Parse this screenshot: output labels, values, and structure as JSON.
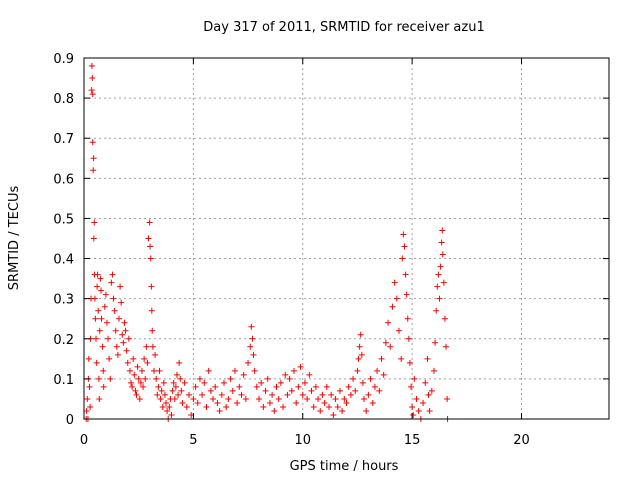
{
  "chart_data": {
    "type": "scatter",
    "title": "Day 317 of 2011, SRMTID for receiver azu1",
    "xlabel": "GPS time / hours",
    "ylabel": "SRMTID / TECUs",
    "xlim": [
      0,
      24
    ],
    "ylim": [
      0,
      0.9
    ],
    "xticks": [
      0,
      5,
      10,
      15,
      20
    ],
    "yticks": [
      0,
      0.1,
      0.2,
      0.3,
      0.4,
      0.5,
      0.6,
      0.7,
      0.8,
      0.9
    ],
    "xtick_labels": [
      "0",
      "5",
      "10",
      "15",
      "20"
    ],
    "ytick_labels": [
      "0",
      "0.1",
      "0.2",
      "0.3",
      "0.4",
      "0.5",
      "0.6",
      "0.7",
      "0.8",
      "0.9"
    ],
    "grid": true,
    "marker": "plus",
    "color": "#ff0000",
    "series": [
      {
        "name": "SRMTID",
        "points": [
          [
            0.1,
            0.0
          ],
          [
            0.12,
            0.02
          ],
          [
            0.15,
            0.05
          ],
          [
            0.18,
            0.0
          ],
          [
            0.2,
            0.1
          ],
          [
            0.22,
            0.15
          ],
          [
            0.25,
            0.08
          ],
          [
            0.28,
            0.03
          ],
          [
            0.3,
            0.2
          ],
          [
            0.32,
            0.3
          ],
          [
            0.35,
            0.82
          ],
          [
            0.36,
            0.88
          ],
          [
            0.38,
            0.85
          ],
          [
            0.4,
            0.81
          ],
          [
            0.4,
            0.69
          ],
          [
            0.42,
            0.62
          ],
          [
            0.44,
            0.65
          ],
          [
            0.45,
            0.45
          ],
          [
            0.47,
            0.49
          ],
          [
            0.48,
            0.36
          ],
          [
            0.5,
            0.3
          ],
          [
            0.52,
            0.25
          ],
          [
            0.55,
            0.2
          ],
          [
            0.58,
            0.14
          ],
          [
            0.6,
            0.33
          ],
          [
            0.62,
            0.36
          ],
          [
            0.65,
            0.27
          ],
          [
            0.68,
            0.1
          ],
          [
            0.7,
            0.05
          ],
          [
            0.72,
            0.22
          ],
          [
            0.75,
            0.35
          ],
          [
            0.78,
            0.32
          ],
          [
            0.8,
            0.25
          ],
          [
            0.85,
            0.18
          ],
          [
            0.88,
            0.12
          ],
          [
            0.9,
            0.08
          ],
          [
            0.95,
            0.28
          ],
          [
            1.0,
            0.31
          ],
          [
            1.05,
            0.24
          ],
          [
            1.1,
            0.2
          ],
          [
            1.15,
            0.15
          ],
          [
            1.2,
            0.1
          ],
          [
            1.25,
            0.34
          ],
          [
            1.3,
            0.36
          ],
          [
            1.35,
            0.3
          ],
          [
            1.4,
            0.27
          ],
          [
            1.45,
            0.22
          ],
          [
            1.5,
            0.18
          ],
          [
            1.55,
            0.16
          ],
          [
            1.6,
            0.25
          ],
          [
            1.65,
            0.33
          ],
          [
            1.7,
            0.29
          ],
          [
            1.75,
            0.21
          ],
          [
            1.8,
            0.19
          ],
          [
            1.85,
            0.24
          ],
          [
            1.9,
            0.22
          ],
          [
            1.95,
            0.17
          ],
          [
            2.0,
            0.14
          ],
          [
            2.05,
            0.2
          ],
          [
            2.1,
            0.12
          ],
          [
            2.15,
            0.09
          ],
          [
            2.2,
            0.08
          ],
          [
            2.25,
            0.15
          ],
          [
            2.3,
            0.11
          ],
          [
            2.35,
            0.07
          ],
          [
            2.4,
            0.06
          ],
          [
            2.45,
            0.13
          ],
          [
            2.5,
            0.1
          ],
          [
            2.55,
            0.05
          ],
          [
            2.6,
            0.09
          ],
          [
            2.65,
            0.12
          ],
          [
            2.7,
            0.08
          ],
          [
            2.75,
            0.15
          ],
          [
            2.8,
            0.1
          ],
          [
            2.85,
            0.18
          ],
          [
            2.9,
            0.14
          ],
          [
            2.95,
            0.45
          ],
          [
            3.0,
            0.49
          ],
          [
            3.02,
            0.43
          ],
          [
            3.05,
            0.4
          ],
          [
            3.08,
            0.33
          ],
          [
            3.1,
            0.27
          ],
          [
            3.12,
            0.22
          ],
          [
            3.15,
            0.18
          ],
          [
            3.2,
            0.12
          ],
          [
            3.25,
            0.16
          ],
          [
            3.3,
            0.1
          ],
          [
            3.35,
            0.06
          ],
          [
            3.4,
            0.08
          ],
          [
            3.45,
            0.12
          ],
          [
            3.5,
            0.05
          ],
          [
            3.55,
            0.07
          ],
          [
            3.6,
            0.03
          ],
          [
            3.65,
            0.09
          ],
          [
            3.7,
            0.06
          ],
          [
            3.75,
            0.04
          ],
          [
            3.8,
            0.02
          ],
          [
            3.85,
            0.0
          ],
          [
            3.9,
            0.03
          ],
          [
            3.95,
            0.05
          ],
          [
            4.0,
            0.01
          ],
          [
            4.05,
            0.07
          ],
          [
            4.1,
            0.09
          ],
          [
            4.15,
            0.05
          ],
          [
            4.2,
            0.08
          ],
          [
            4.25,
            0.11
          ],
          [
            4.3,
            0.06
          ],
          [
            4.35,
            0.14
          ],
          [
            4.4,
            0.1
          ],
          [
            4.45,
            0.07
          ],
          [
            4.5,
            0.04
          ],
          [
            4.6,
            0.09
          ],
          [
            4.7,
            0.03
          ],
          [
            4.8,
            0.06
          ],
          [
            4.9,
            0.01
          ],
          [
            5.0,
            0.05
          ],
          [
            5.1,
            0.08
          ],
          [
            5.2,
            0.04
          ],
          [
            5.3,
            0.1
          ],
          [
            5.4,
            0.06
          ],
          [
            5.5,
            0.09
          ],
          [
            5.6,
            0.03
          ],
          [
            5.7,
            0.12
          ],
          [
            5.8,
            0.07
          ],
          [
            5.9,
            0.05
          ],
          [
            6.0,
            0.08
          ],
          [
            6.1,
            0.04
          ],
          [
            6.2,
            0.02
          ],
          [
            6.3,
            0.06
          ],
          [
            6.4,
            0.09
          ],
          [
            6.5,
            0.03
          ],
          [
            6.6,
            0.05
          ],
          [
            6.7,
            0.1
          ],
          [
            6.8,
            0.07
          ],
          [
            6.9,
            0.12
          ],
          [
            7.0,
            0.04
          ],
          [
            7.1,
            0.08
          ],
          [
            7.2,
            0.06
          ],
          [
            7.3,
            0.11
          ],
          [
            7.4,
            0.05
          ],
          [
            7.5,
            0.14
          ],
          [
            7.6,
            0.18
          ],
          [
            7.65,
            0.23
          ],
          [
            7.7,
            0.2
          ],
          [
            7.75,
            0.16
          ],
          [
            7.8,
            0.12
          ],
          [
            7.9,
            0.08
          ],
          [
            8.0,
            0.05
          ],
          [
            8.1,
            0.09
          ],
          [
            8.2,
            0.03
          ],
          [
            8.3,
            0.07
          ],
          [
            8.4,
            0.1
          ],
          [
            8.5,
            0.04
          ],
          [
            8.6,
            0.06
          ],
          [
            8.7,
            0.02
          ],
          [
            8.8,
            0.08
          ],
          [
            8.9,
            0.05
          ],
          [
            9.0,
            0.09
          ],
          [
            9.1,
            0.03
          ],
          [
            9.2,
            0.11
          ],
          [
            9.3,
            0.06
          ],
          [
            9.4,
            0.1
          ],
          [
            9.5,
            0.07
          ],
          [
            9.6,
            0.12
          ],
          [
            9.7,
            0.04
          ],
          [
            9.8,
            0.08
          ],
          [
            9.9,
            0.13
          ],
          [
            10.0,
            0.06
          ],
          [
            10.1,
            0.09
          ],
          [
            10.2,
            0.05
          ],
          [
            10.3,
            0.11
          ],
          [
            10.4,
            0.07
          ],
          [
            10.5,
            0.03
          ],
          [
            10.6,
            0.08
          ],
          [
            10.7,
            0.05
          ],
          [
            10.8,
            0.02
          ],
          [
            10.9,
            0.06
          ],
          [
            11.0,
            0.04
          ],
          [
            11.1,
            0.08
          ],
          [
            11.2,
            0.03
          ],
          [
            11.3,
            0.06
          ],
          [
            11.4,
            0.01
          ],
          [
            11.5,
            0.05
          ],
          [
            11.6,
            0.03
          ],
          [
            11.7,
            0.07
          ],
          [
            11.8,
            0.02
          ],
          [
            11.9,
            0.05
          ],
          [
            12.0,
            0.04
          ],
          [
            12.1,
            0.08
          ],
          [
            12.2,
            0.06
          ],
          [
            12.3,
            0.1
          ],
          [
            12.4,
            0.07
          ],
          [
            12.5,
            0.12
          ],
          [
            12.55,
            0.15
          ],
          [
            12.6,
            0.18
          ],
          [
            12.65,
            0.21
          ],
          [
            12.7,
            0.16
          ],
          [
            12.75,
            0.09
          ],
          [
            12.8,
            0.05
          ],
          [
            12.9,
            0.02
          ],
          [
            13.0,
            0.06
          ],
          [
            13.1,
            0.1
          ],
          [
            13.2,
            0.04
          ],
          [
            13.3,
            0.08
          ],
          [
            13.4,
            0.12
          ],
          [
            13.5,
            0.07
          ],
          [
            13.6,
            0.15
          ],
          [
            13.7,
            0.11
          ],
          [
            13.8,
            0.19
          ],
          [
            13.9,
            0.24
          ],
          [
            14.0,
            0.18
          ],
          [
            14.1,
            0.28
          ],
          [
            14.2,
            0.34
          ],
          [
            14.3,
            0.3
          ],
          [
            14.4,
            0.22
          ],
          [
            14.5,
            0.15
          ],
          [
            14.55,
            0.4
          ],
          [
            14.6,
            0.46
          ],
          [
            14.65,
            0.43
          ],
          [
            14.7,
            0.36
          ],
          [
            14.75,
            0.31
          ],
          [
            14.8,
            0.25
          ],
          [
            14.85,
            0.2
          ],
          [
            14.9,
            0.14
          ],
          [
            14.95,
            0.08
          ],
          [
            15.0,
            0.03
          ],
          [
            15.05,
            0.01
          ],
          [
            15.1,
            0.1
          ],
          [
            15.2,
            0.05
          ],
          [
            15.3,
            0.02
          ],
          [
            15.4,
            0.0
          ],
          [
            15.5,
            0.04
          ],
          [
            15.6,
            0.09
          ],
          [
            15.7,
            0.15
          ],
          [
            15.75,
            0.06
          ],
          [
            15.8,
            0.02
          ],
          [
            15.9,
            0.07
          ],
          [
            16.0,
            0.12
          ],
          [
            16.05,
            0.19
          ],
          [
            16.1,
            0.27
          ],
          [
            16.15,
            0.33
          ],
          [
            16.2,
            0.36
          ],
          [
            16.25,
            0.3
          ],
          [
            16.3,
            0.38
          ],
          [
            16.35,
            0.44
          ],
          [
            16.38,
            0.47
          ],
          [
            16.4,
            0.41
          ],
          [
            16.45,
            0.34
          ],
          [
            16.5,
            0.25
          ],
          [
            16.55,
            0.18
          ],
          [
            16.6,
            0.05
          ],
          [
            16.62,
            0.0
          ]
        ]
      }
    ]
  }
}
